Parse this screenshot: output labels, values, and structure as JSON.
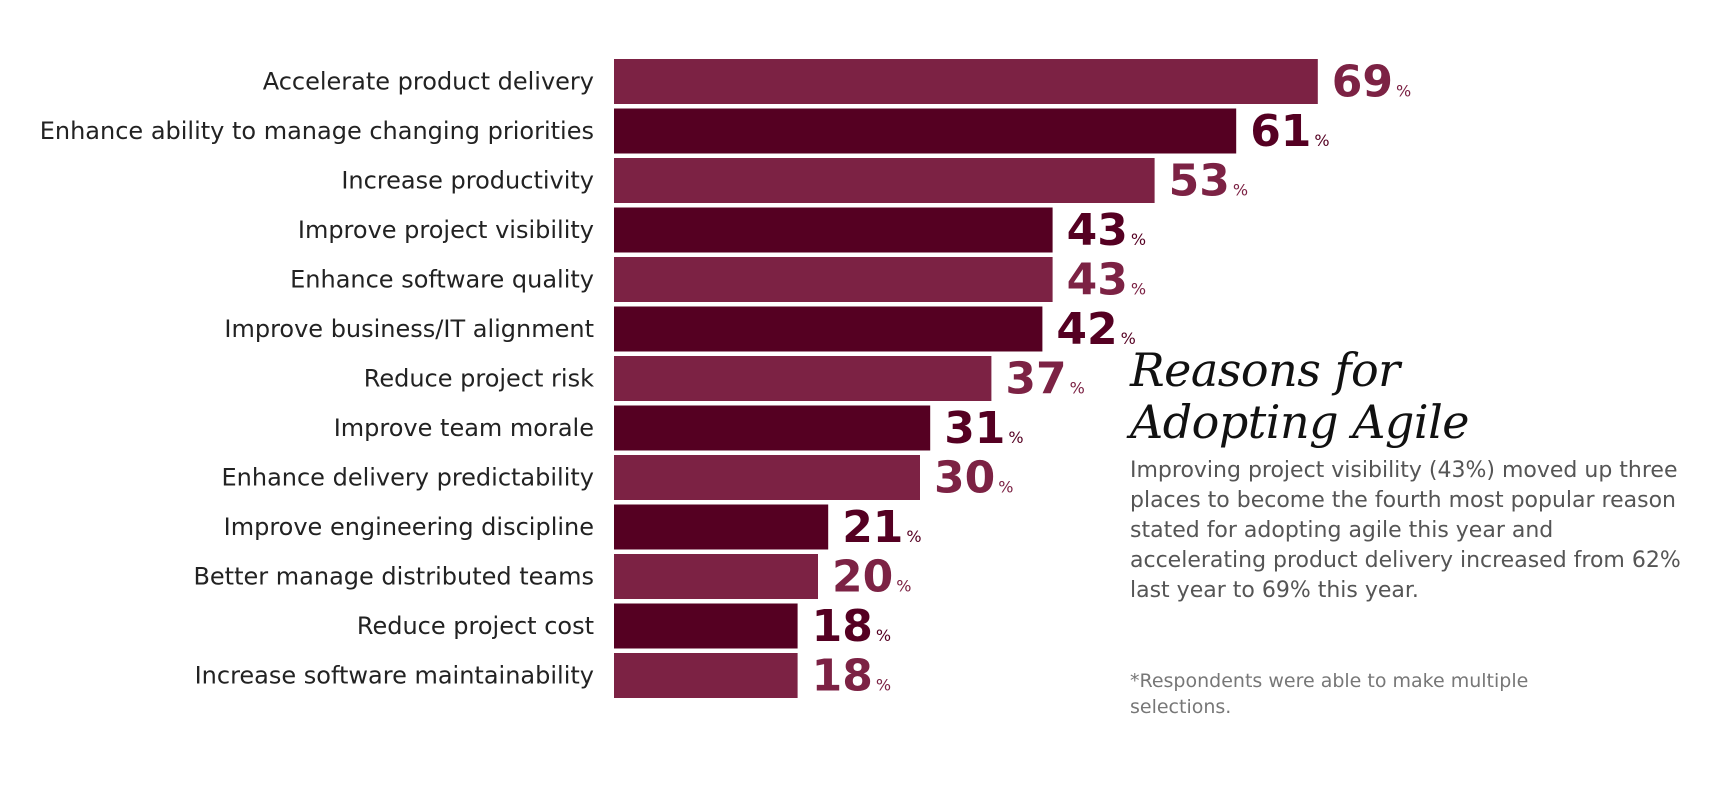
{
  "colors": {
    "bar_light": "#7c2244",
    "bar_dark": "#550022"
  },
  "side_panel": {
    "title_line1": "Reasons for",
    "title_line2": "Adopting Agile",
    "body": "Improving project visibility (43%) moved up three places to become the fourth most popular reason stated for adopting agile this year and accelerating product delivery increased from 62% last year to 69% this year.",
    "footnote": "*Respondents were able to make multiple selections."
  },
  "chart_data": {
    "type": "bar",
    "orientation": "horizontal",
    "categories": [
      "Accelerate product delivery",
      "Enhance ability to manage changing priorities",
      "Increase productivity",
      "Improve project visibility",
      "Enhance software quality",
      "Improve business/IT alignment",
      "Reduce project risk",
      "Improve team morale",
      "Enhance delivery predictability",
      "Improve engineering discipline",
      "Better manage distributed teams",
      "Reduce project cost",
      "Increase software maintainability"
    ],
    "values": [
      69,
      61,
      53,
      43,
      43,
      42,
      37,
      31,
      30,
      21,
      20,
      18,
      18
    ],
    "value_suffix": "%",
    "xlim": [
      0,
      100
    ],
    "grid": false,
    "legend": "none"
  }
}
